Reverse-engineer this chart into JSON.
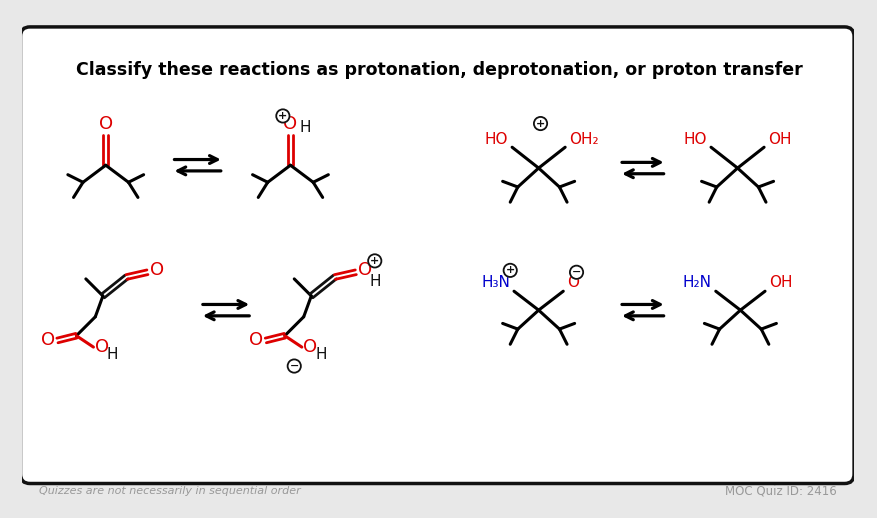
{
  "title": "Classify these reactions as protonation, deprotonation, or proton transfer",
  "footer_left": "Quizzes are not necessarily in sequential order",
  "footer_right": "MOC Quiz ID: 2416",
  "red": "#dd0000",
  "blue": "#0000cc",
  "black": "#111111",
  "gray": "#999999",
  "bg": "#e8e8e8",
  "white": "#ffffff"
}
